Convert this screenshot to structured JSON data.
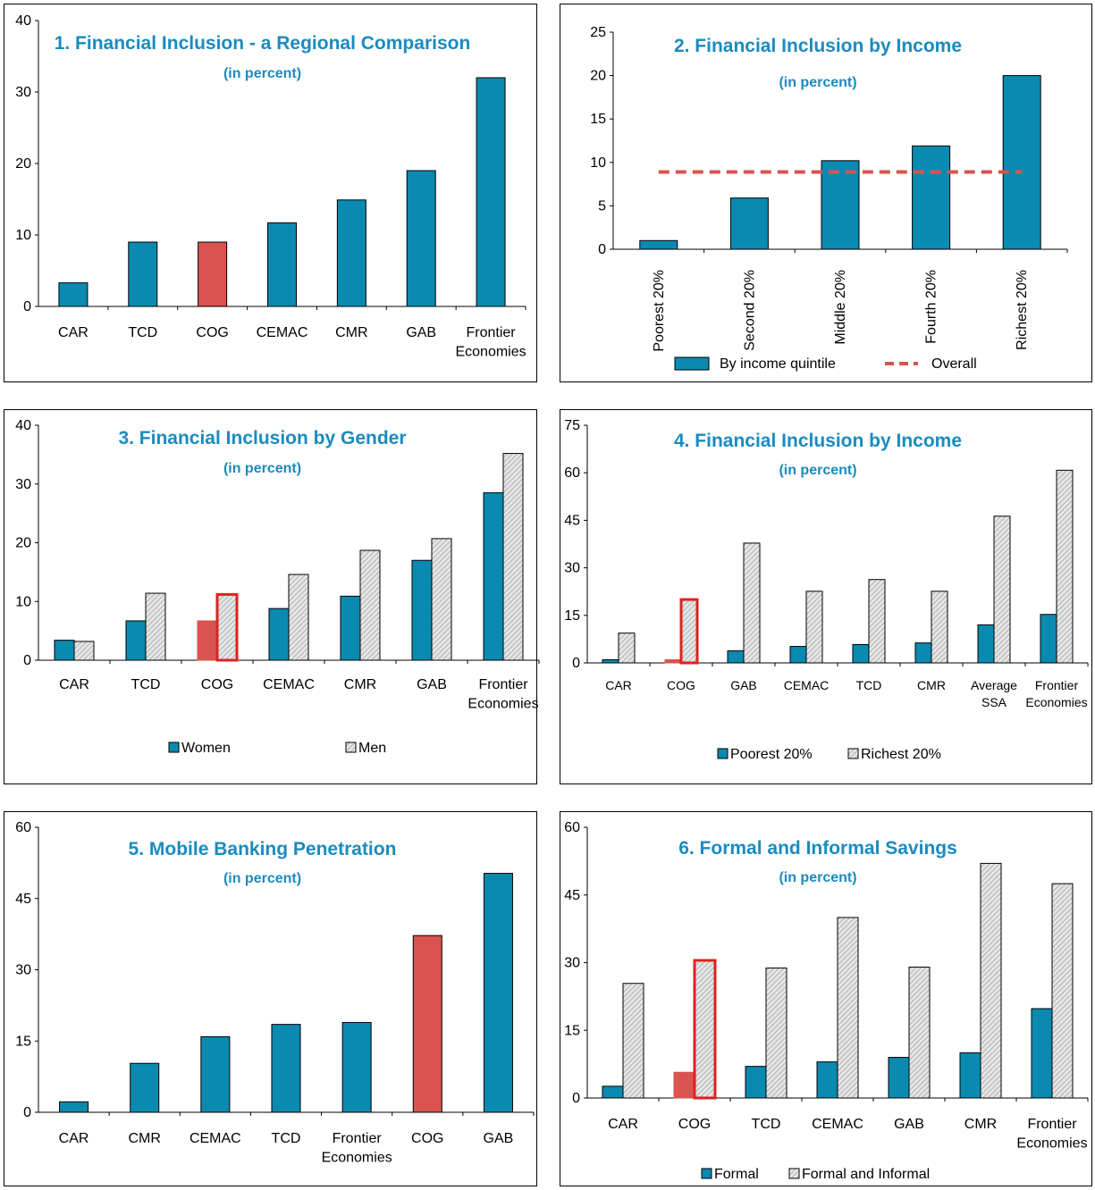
{
  "colors": {
    "teal": "#0a8ab0",
    "red": "#d9534f",
    "outline_red": "#e02020",
    "grey_fill": "#cfcfcf",
    "title_blue": "#1a8bbf"
  },
  "chart_data": [
    {
      "id": "p1",
      "type": "bar",
      "title": "1. Financial Inclusion - a Regional Comparison",
      "subtitle": "(in percent)",
      "ylim": [
        0,
        40
      ],
      "yticks": [
        0,
        10,
        20,
        30,
        40
      ],
      "categories": [
        "CAR",
        "TCD",
        "COG",
        "CEMAC",
        "CMR",
        "GAB",
        "Frontier Economies"
      ],
      "series": [
        {
          "values": [
            3.3,
            9.0,
            9.0,
            11.7,
            14.9,
            19.0,
            32.0
          ]
        }
      ],
      "highlight_index": 2
    },
    {
      "id": "p2",
      "type": "bar",
      "title": "2. Financial Inclusion by Income",
      "subtitle": "(in percent)",
      "ylim": [
        0,
        25
      ],
      "yticks": [
        0,
        5,
        10,
        15,
        20,
        25
      ],
      "categories": [
        "Poorest 20%",
        "Second 20%",
        "Middle 20%",
        "Fourth 20%",
        "Richest 20%"
      ],
      "series": [
        {
          "name": "By income quintile",
          "values": [
            1.0,
            5.9,
            10.2,
            11.9,
            20.0
          ]
        }
      ],
      "overall": {
        "name": "Overall",
        "value": 8.9
      },
      "legend": "bottom"
    },
    {
      "id": "p3",
      "type": "bar",
      "title": "3. Financial Inclusion by Gender",
      "subtitle": "(in percent)",
      "ylim": [
        0,
        40
      ],
      "yticks": [
        0,
        10,
        20,
        30,
        40
      ],
      "categories": [
        "CAR",
        "TCD",
        "COG",
        "CEMAC",
        "CMR",
        "GAB",
        "Frontier Economies"
      ],
      "series": [
        {
          "name": "Women",
          "values": [
            3.4,
            6.7,
            6.7,
            8.8,
            10.9,
            17.0,
            28.5
          ]
        },
        {
          "name": "Men",
          "values": [
            3.2,
            11.4,
            11.2,
            14.6,
            18.7,
            20.7,
            35.2
          ]
        }
      ],
      "highlight_index": 2,
      "legend": "bottom"
    },
    {
      "id": "p4",
      "type": "bar",
      "title": "4. Financial Inclusion by Income",
      "subtitle": "(in percent)",
      "ylim": [
        0,
        75
      ],
      "yticks": [
        0,
        15,
        30,
        45,
        60,
        75
      ],
      "categories": [
        "CAR",
        "COG",
        "GAB",
        "CEMAC",
        "TCD",
        "CMR",
        "Average SSA",
        "Frontier Economies"
      ],
      "series": [
        {
          "name": "Poorest 20%",
          "values": [
            1.0,
            1.0,
            3.8,
            5.2,
            5.8,
            6.3,
            12.0,
            15.3
          ]
        },
        {
          "name": "Richest 20%",
          "values": [
            9.4,
            20.0,
            37.8,
            22.6,
            26.3,
            22.6,
            46.3,
            60.8
          ]
        }
      ],
      "highlight_index": 1,
      "legend": "bottom"
    },
    {
      "id": "p5",
      "type": "bar",
      "title": "5. Mobile Banking Penetration",
      "subtitle": "(in percent)",
      "ylim": [
        0,
        60
      ],
      "yticks": [
        0,
        15,
        30,
        45,
        60
      ],
      "categories": [
        "CAR",
        "CMR",
        "CEMAC",
        "TCD",
        "Frontier Economies",
        "COG",
        "GAB"
      ],
      "series": [
        {
          "values": [
            2.2,
            10.3,
            15.9,
            18.5,
            18.9,
            37.2,
            50.3
          ]
        }
      ],
      "highlight_index": 5
    },
    {
      "id": "p6",
      "type": "bar",
      "title": "6. Formal and Informal Savings",
      "subtitle": "(in percent)",
      "ylim": [
        0,
        60
      ],
      "yticks": [
        0,
        15,
        30,
        45,
        60
      ],
      "categories": [
        "CAR",
        "COG",
        "TCD",
        "CEMAC",
        "GAB",
        "CMR",
        "Frontier Economies"
      ],
      "series": [
        {
          "name": "Formal",
          "values": [
            2.6,
            5.7,
            7.0,
            8.0,
            9.0,
            10.0,
            19.8
          ]
        },
        {
          "name": "Formal and Informal",
          "values": [
            25.4,
            30.5,
            28.8,
            40.0,
            29.0,
            52.0,
            47.5
          ]
        }
      ],
      "highlight_index": 1,
      "legend": "bottom"
    }
  ]
}
